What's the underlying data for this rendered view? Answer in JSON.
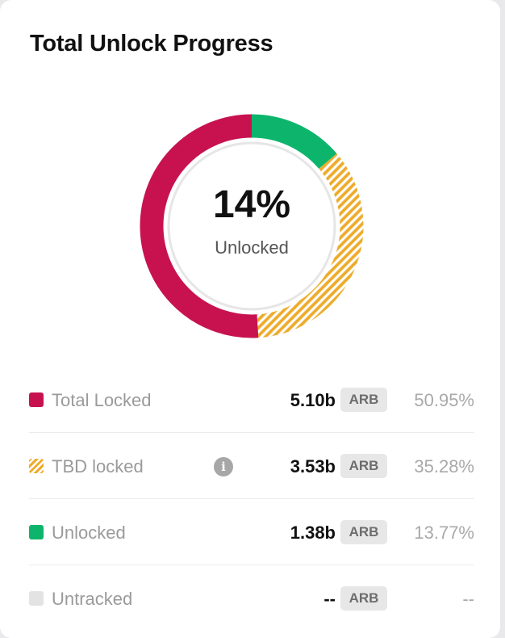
{
  "title": "Total Unlock Progress",
  "center": {
    "percent": "14%",
    "label": "Unlocked"
  },
  "colors": {
    "locked": "#c8124f",
    "tbd": "#eeac2d",
    "unlocked": "#0db56c",
    "untracked": "#e3e3e3",
    "track": "#e6e6e6"
  },
  "rows": [
    {
      "label": "Total Locked",
      "value": "5.10b",
      "unit": "ARB",
      "percent": "50.95%",
      "swatch": "solid",
      "color": "#c8124f",
      "info": false
    },
    {
      "label": "TBD locked",
      "value": "3.53b",
      "unit": "ARB",
      "percent": "35.28%",
      "swatch": "hatch",
      "color": "#eeac2d",
      "info": true,
      "info_icon": "i"
    },
    {
      "label": "Unlocked",
      "value": "1.38b",
      "unit": "ARB",
      "percent": "13.77%",
      "swatch": "solid",
      "color": "#0db56c",
      "info": false
    },
    {
      "label": "Untracked",
      "value": "--",
      "unit": "ARB",
      "percent": "--",
      "swatch": "solid",
      "color": "#e3e3e3",
      "info": false
    }
  ],
  "chart_data": {
    "type": "pie",
    "title": "Total Unlock Progress",
    "categories": [
      "Unlocked",
      "TBD locked",
      "Total Locked"
    ],
    "values": [
      13.77,
      35.28,
      50.95
    ],
    "units": "%",
    "style": "donut"
  }
}
